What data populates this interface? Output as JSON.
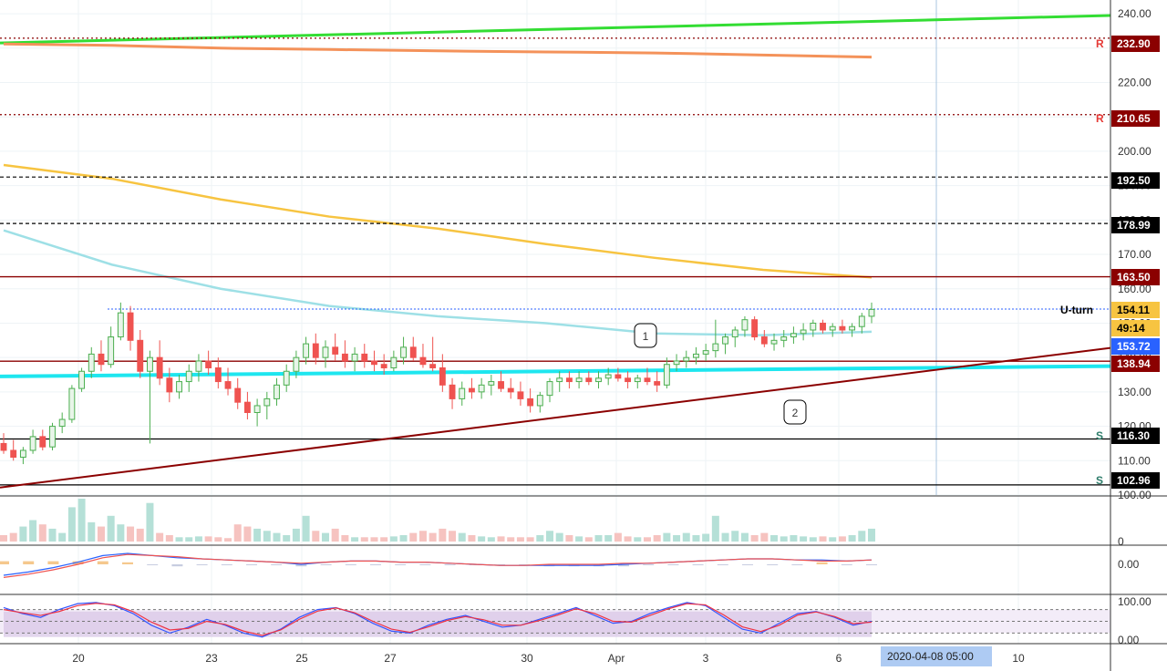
{
  "colors": {
    "up": "#4caf50",
    "down": "#ef5350",
    "up_fill": "#e8f5e9",
    "green_trend": "#33dd33",
    "orange_ma": "#f4925a",
    "yellow_ma": "#f7c441",
    "cyan_ma": "#9ee0e6",
    "cyan_line": "#1ee6ef",
    "dark_red": "#8b0000",
    "volume_up": "#b5e0d7",
    "volume_down": "#f6c3c0",
    "macd": "#2962ff",
    "signal": "#ef5350",
    "stoch_k": "#3355ff",
    "stoch_d": "#ee3344",
    "rsi_band": "#d7c5e6"
  },
  "chart_data": {
    "type": "candlestick",
    "y_axis": {
      "ticks": [
        100,
        110,
        120,
        130,
        140,
        150,
        160,
        170,
        180,
        190,
        200,
        210,
        220,
        230,
        240
      ],
      "range": [
        100,
        244
      ]
    },
    "x_axis": {
      "labels": [
        "20",
        "23",
        "25",
        "27",
        "30",
        "Apr",
        "3",
        "6",
        "10"
      ]
    },
    "hover_date": "2020-04-08  05:00",
    "price_tags": [
      {
        "value": "232.90",
        "prefix": "R",
        "bg": "#8b0000"
      },
      {
        "value": "210.65",
        "prefix": "R",
        "bg": "#8b0000"
      },
      {
        "value": "192.50",
        "prefix": "",
        "bg": "#000000"
      },
      {
        "value": "178.99",
        "prefix": "",
        "bg": "#000000"
      },
      {
        "value": "163.50",
        "prefix": "",
        "bg": "#8b0000"
      },
      {
        "value": "154.11",
        "prefix": "",
        "bg": "#f7c441",
        "fg": "#000000"
      },
      {
        "value": "49:14",
        "prefix": "",
        "bg": "#f7c441",
        "fg": "#000000"
      },
      {
        "value": "153.72",
        "prefix": "",
        "bg": "#2962ff"
      },
      {
        "value": "138.94",
        "prefix": "",
        "bg": "#8b0000"
      },
      {
        "value": "116.30",
        "prefix": "S",
        "bg": "#000000"
      },
      {
        "value": "102.96",
        "prefix": "S",
        "bg": "#000000"
      }
    ],
    "level_lines": [
      {
        "value": 232.9,
        "style": "dotted",
        "color": "#8b0000"
      },
      {
        "value": 210.65,
        "style": "dotted",
        "color": "#8b0000"
      },
      {
        "value": 192.5,
        "style": "dashed",
        "color": "#000000"
      },
      {
        "value": 178.99,
        "style": "dashed",
        "color": "#000000"
      },
      {
        "value": 163.5,
        "style": "solid",
        "color": "#8b0000"
      },
      {
        "value": 138.94,
        "style": "solid",
        "color": "#8b0000"
      },
      {
        "value": 116.3,
        "style": "solid",
        "color": "#000000"
      },
      {
        "value": 102.96,
        "style": "solid",
        "color": "#000000"
      }
    ],
    "annotation_text": "U-turn",
    "callouts": [
      "1",
      "2"
    ],
    "candles": [
      [
        115,
        118,
        112,
        113
      ],
      [
        113,
        116,
        110,
        111
      ],
      [
        111,
        114,
        109,
        113
      ],
      [
        113,
        119,
        112,
        117
      ],
      [
        117,
        119,
        113,
        114
      ],
      [
        114,
        121,
        113,
        120
      ],
      [
        120,
        124,
        118,
        122
      ],
      [
        122,
        132,
        121,
        131
      ],
      [
        131,
        137,
        130,
        136
      ],
      [
        136,
        143,
        134,
        141
      ],
      [
        141,
        145,
        136,
        138
      ],
      [
        138,
        149,
        137,
        146
      ],
      [
        146,
        156,
        145,
        153
      ],
      [
        153,
        155,
        142,
        145
      ],
      [
        145,
        148,
        134,
        136
      ],
      [
        136,
        142,
        115,
        140
      ],
      [
        140,
        145,
        132,
        134
      ],
      [
        134,
        137,
        127,
        130
      ],
      [
        130,
        135,
        128,
        133
      ],
      [
        133,
        138,
        130,
        136
      ],
      [
        136,
        141,
        133,
        139
      ],
      [
        139,
        142,
        135,
        137
      ],
      [
        137,
        140,
        131,
        133
      ],
      [
        133,
        137,
        129,
        131
      ],
      [
        131,
        134,
        125,
        127
      ],
      [
        127,
        130,
        122,
        124
      ],
      [
        124,
        128,
        120,
        126
      ],
      [
        126,
        130,
        122,
        128
      ],
      [
        128,
        134,
        126,
        132
      ],
      [
        132,
        138,
        130,
        136
      ],
      [
        136,
        142,
        134,
        140
      ],
      [
        140,
        146,
        138,
        144
      ],
      [
        144,
        147,
        138,
        140
      ],
      [
        140,
        145,
        137,
        143
      ],
      [
        143,
        147,
        139,
        141
      ],
      [
        141,
        145,
        137,
        139
      ],
      [
        139,
        143,
        136,
        141
      ],
      [
        141,
        144,
        137,
        139
      ],
      [
        139,
        142,
        136,
        138
      ],
      [
        138,
        141,
        135,
        137
      ],
      [
        137,
        142,
        136,
        140
      ],
      [
        140,
        146,
        138,
        143
      ],
      [
        143,
        146,
        139,
        140
      ],
      [
        140,
        144,
        137,
        138
      ],
      [
        138,
        146,
        136,
        137
      ],
      [
        137,
        141,
        130,
        132
      ],
      [
        132,
        134,
        125,
        128
      ],
      [
        128,
        133,
        126,
        131
      ],
      [
        131,
        134,
        128,
        130
      ],
      [
        130,
        134,
        128,
        132
      ],
      [
        132,
        135,
        129,
        133
      ],
      [
        133,
        136,
        130,
        131
      ],
      [
        131,
        134,
        128,
        130
      ],
      [
        130,
        133,
        126,
        128
      ],
      [
        128,
        131,
        124,
        126
      ],
      [
        126,
        130,
        124,
        129
      ],
      [
        129,
        134,
        127,
        133
      ],
      [
        133,
        136,
        130,
        134
      ],
      [
        134,
        136,
        131,
        133
      ],
      [
        133,
        136,
        131,
        134
      ],
      [
        134,
        136,
        132,
        133
      ],
      [
        133,
        136,
        131,
        134
      ],
      [
        134,
        137,
        132,
        135
      ],
      [
        135,
        137,
        133,
        134
      ],
      [
        134,
        136,
        131,
        133
      ],
      [
        133,
        135,
        131,
        134
      ],
      [
        134,
        137,
        132,
        133
      ],
      [
        133,
        136,
        130,
        132
      ],
      [
        132,
        140,
        131,
        138
      ],
      [
        138,
        141,
        136,
        139
      ],
      [
        139,
        142,
        137,
        140
      ],
      [
        140,
        143,
        138,
        141
      ],
      [
        141,
        144,
        139,
        142
      ],
      [
        142,
        151,
        140,
        144
      ],
      [
        144,
        147,
        141,
        146
      ],
      [
        146,
        149,
        143,
        148
      ],
      [
        148,
        152,
        146,
        151
      ],
      [
        151,
        152,
        145,
        146
      ],
      [
        146,
        148,
        143,
        144
      ],
      [
        144,
        147,
        142,
        145
      ],
      [
        145,
        148,
        143,
        146
      ],
      [
        146,
        149,
        144,
        147
      ],
      [
        147,
        150,
        145,
        148
      ],
      [
        148,
        151,
        146,
        150
      ],
      [
        150,
        151,
        147,
        148
      ],
      [
        148,
        150,
        146,
        149
      ],
      [
        149,
        151,
        147,
        148
      ],
      [
        148,
        150,
        146,
        149
      ],
      [
        149,
        153,
        147,
        152
      ],
      [
        152,
        156,
        150,
        154
      ]
    ],
    "moving_averages": [
      {
        "name": "",
        "color": "#33dd33",
        "values": [
          231.5,
          232.2,
          233.2,
          234.3,
          235.4,
          236.3,
          237.2,
          238.0,
          239.0
        ]
      },
      {
        "name": "",
        "color": "#f4925a",
        "values": [
          231.2,
          230.8,
          230.0,
          229.6,
          229.2,
          228.9,
          228.6,
          228.0,
          227.4
        ]
      },
      {
        "name": "",
        "color": "#f7c441",
        "values": [
          196.0,
          192.0,
          186.0,
          181.0,
          177.5,
          173.0,
          169.0,
          165.5,
          163.3
        ]
      },
      {
        "name": "",
        "color": "#9ee0e6",
        "values": [
          177.0,
          167.0,
          160.0,
          155.0,
          152.0,
          150.0,
          147.0,
          146.5,
          147.5
        ]
      }
    ],
    "volume": [
      0.15,
      0.2,
      0.35,
      0.5,
      0.4,
      0.3,
      0.2,
      0.8,
      1.0,
      0.45,
      0.35,
      0.6,
      0.4,
      0.35,
      0.3,
      0.9,
      0.2,
      0.15,
      0.1,
      0.1,
      0.12,
      0.12,
      0.1,
      0.08,
      0.4,
      0.35,
      0.3,
      0.25,
      0.2,
      0.15,
      0.3,
      0.6,
      0.25,
      0.2,
      0.3,
      0.15,
      0.1,
      0.1,
      0.1,
      0.1,
      0.12,
      0.15,
      0.2,
      0.25,
      0.2,
      0.3,
      0.25,
      0.2,
      0.15,
      0.12,
      0.1,
      0.12,
      0.1,
      0.1,
      0.1,
      0.15,
      0.25,
      0.2,
      0.15,
      0.12,
      0.1,
      0.15,
      0.15,
      0.2,
      0.12,
      0.1,
      0.1,
      0.15,
      0.2,
      0.15,
      0.2,
      0.15,
      0.18,
      0.6,
      0.2,
      0.25,
      0.2,
      0.15,
      0.2,
      0.15,
      0.12,
      0.15,
      0.12,
      0.1,
      0.12,
      0.1,
      0.12,
      0.15,
      0.25,
      0.3
    ],
    "macd_label": "0.00",
    "macd": [
      -1.0,
      -0.7,
      -0.3,
      0.2,
      0.8,
      1.0,
      0.8,
      0.6,
      0.5,
      0.4,
      0.3,
      0.2,
      0.0,
      0.2,
      0.3,
      0.3,
      0.2,
      0.2,
      0.1,
      0.0,
      -0.1,
      -0.1,
      -0.1,
      -0.1,
      -0.1,
      0.0,
      0.1,
      0.2,
      0.3,
      0.4,
      0.5,
      0.5,
      0.4,
      0.4,
      0.3,
      0.4
    ],
    "signal": [
      -1.2,
      -0.9,
      -0.5,
      0.0,
      0.6,
      0.9,
      0.8,
      0.7,
      0.5,
      0.4,
      0.3,
      0.2,
      0.1,
      0.2,
      0.3,
      0.3,
      0.2,
      0.2,
      0.1,
      0.0,
      -0.1,
      -0.1,
      0.0,
      0.0,
      0.0,
      0.1,
      0.1,
      0.2,
      0.3,
      0.4,
      0.5,
      0.5,
      0.4,
      0.3,
      0.3,
      0.4
    ],
    "stoch_labels": [
      "100.00",
      "0.00"
    ],
    "stoch_k": [
      85,
      70,
      60,
      80,
      95,
      98,
      90,
      70,
      40,
      20,
      35,
      55,
      40,
      20,
      10,
      30,
      60,
      80,
      85,
      70,
      45,
      25,
      20,
      40,
      55,
      65,
      50,
      35,
      40,
      55,
      70,
      85,
      65,
      45,
      50,
      70,
      85,
      98,
      90,
      60,
      30,
      20,
      45,
      70,
      75,
      60,
      40,
      50
    ],
    "stoch_d": [
      80,
      72,
      65,
      75,
      90,
      96,
      92,
      75,
      48,
      28,
      32,
      50,
      42,
      25,
      14,
      28,
      55,
      76,
      84,
      72,
      50,
      30,
      22,
      36,
      52,
      62,
      54,
      40,
      40,
      52,
      66,
      82,
      70,
      50,
      48,
      65,
      82,
      95,
      92,
      66,
      36,
      24,
      40,
      66,
      74,
      62,
      44,
      48
    ]
  }
}
